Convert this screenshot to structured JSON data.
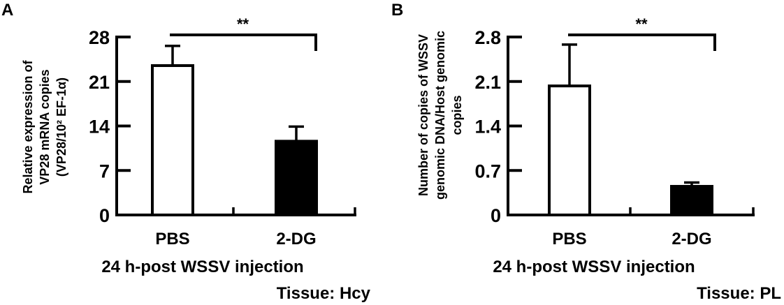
{
  "chart_data": [
    {
      "type": "bar",
      "panel_label": "A",
      "categories": [
        "PBS",
        "2-DG"
      ],
      "values": [
        23.5,
        11.6
      ],
      "error_upper": [
        26.6,
        13.9
      ],
      "bar_fill": [
        "#ffffff",
        "#000000"
      ],
      "ylabel_lines": [
        "Relative expression of",
        "VP28 mRNA copies",
        "(VP28/10² EF-1α)"
      ],
      "yticks": [
        0,
        7,
        14,
        21,
        28
      ],
      "ytick_labels": [
        "0",
        "7",
        "14",
        "21",
        "28"
      ],
      "ylim": [
        0,
        28
      ],
      "significance": "**",
      "xlabel": "24 h-post WSSV injection",
      "note": "Tissue: Hcy",
      "grid": false
    },
    {
      "type": "bar",
      "panel_label": "B",
      "categories": [
        "PBS",
        "2-DG"
      ],
      "values": [
        2.03,
        0.45
      ],
      "error_upper": [
        2.68,
        0.51
      ],
      "bar_fill": [
        "#ffffff",
        "#000000"
      ],
      "ylabel_lines": [
        "Number of copies of WSSV",
        "genomic DNA/Host genomic",
        "copies"
      ],
      "yticks": [
        0,
        0.7,
        1.4,
        2.1,
        2.8
      ],
      "ytick_labels": [
        "0",
        "0.7",
        "1.4",
        "2.1",
        "2.8"
      ],
      "ylim": [
        0,
        2.8
      ],
      "significance": "**",
      "xlabel": "24 h-post WSSV injection",
      "note": "Tissue: PL",
      "grid": false
    }
  ]
}
